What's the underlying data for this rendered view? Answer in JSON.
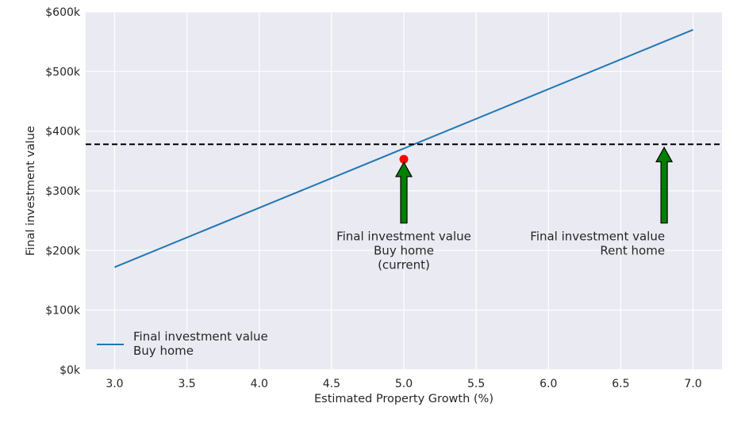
{
  "chart_data": {
    "type": "line",
    "xlabel": "Estimated Property Growth (%)",
    "ylabel": "Final investment value",
    "xlim": [
      2.8,
      7.2
    ],
    "ylim": [
      0,
      600000
    ],
    "x_ticks": [
      3.0,
      3.5,
      4.0,
      4.5,
      5.0,
      5.5,
      6.0,
      6.5,
      7.0
    ],
    "x_tick_labels": [
      "3.0",
      "3.5",
      "4.0",
      "4.5",
      "5.0",
      "5.5",
      "6.0",
      "6.5",
      "7.0"
    ],
    "y_ticks": [
      0,
      100000,
      200000,
      300000,
      400000,
      500000,
      600000
    ],
    "y_tick_labels": [
      "$0k",
      "$100k",
      "$200k",
      "$300k",
      "$400k",
      "$500k",
      "$600k"
    ],
    "grid": true,
    "legend_position": "bottom-left",
    "series": [
      {
        "name": "Final investment value\nBuy home",
        "name_lines": [
          "Final investment value",
          "Buy home"
        ],
        "color": "#1f77b4",
        "x": [
          3.0,
          7.0
        ],
        "y": [
          172000,
          570000
        ]
      }
    ],
    "hline": {
      "y": 378000,
      "color": "#000000",
      "style": "dashed"
    },
    "current_point": {
      "x": 5.0,
      "y": 353000,
      "color": "#ff0000"
    },
    "annotations": [
      {
        "lines": [
          "Final investment value",
          "Buy home",
          "(current)"
        ],
        "arrow_x": 5.0,
        "arrow_tip_y": 353000,
        "arrow_base_y": 250000,
        "align": "center",
        "arrow_color": "#008000"
      },
      {
        "lines": [
          "Final investment value",
          "Rent home"
        ],
        "arrow_x": 6.8,
        "arrow_tip_y": 378000,
        "arrow_base_y": 250000,
        "align": "right",
        "arrow_color": "#008000"
      }
    ]
  }
}
